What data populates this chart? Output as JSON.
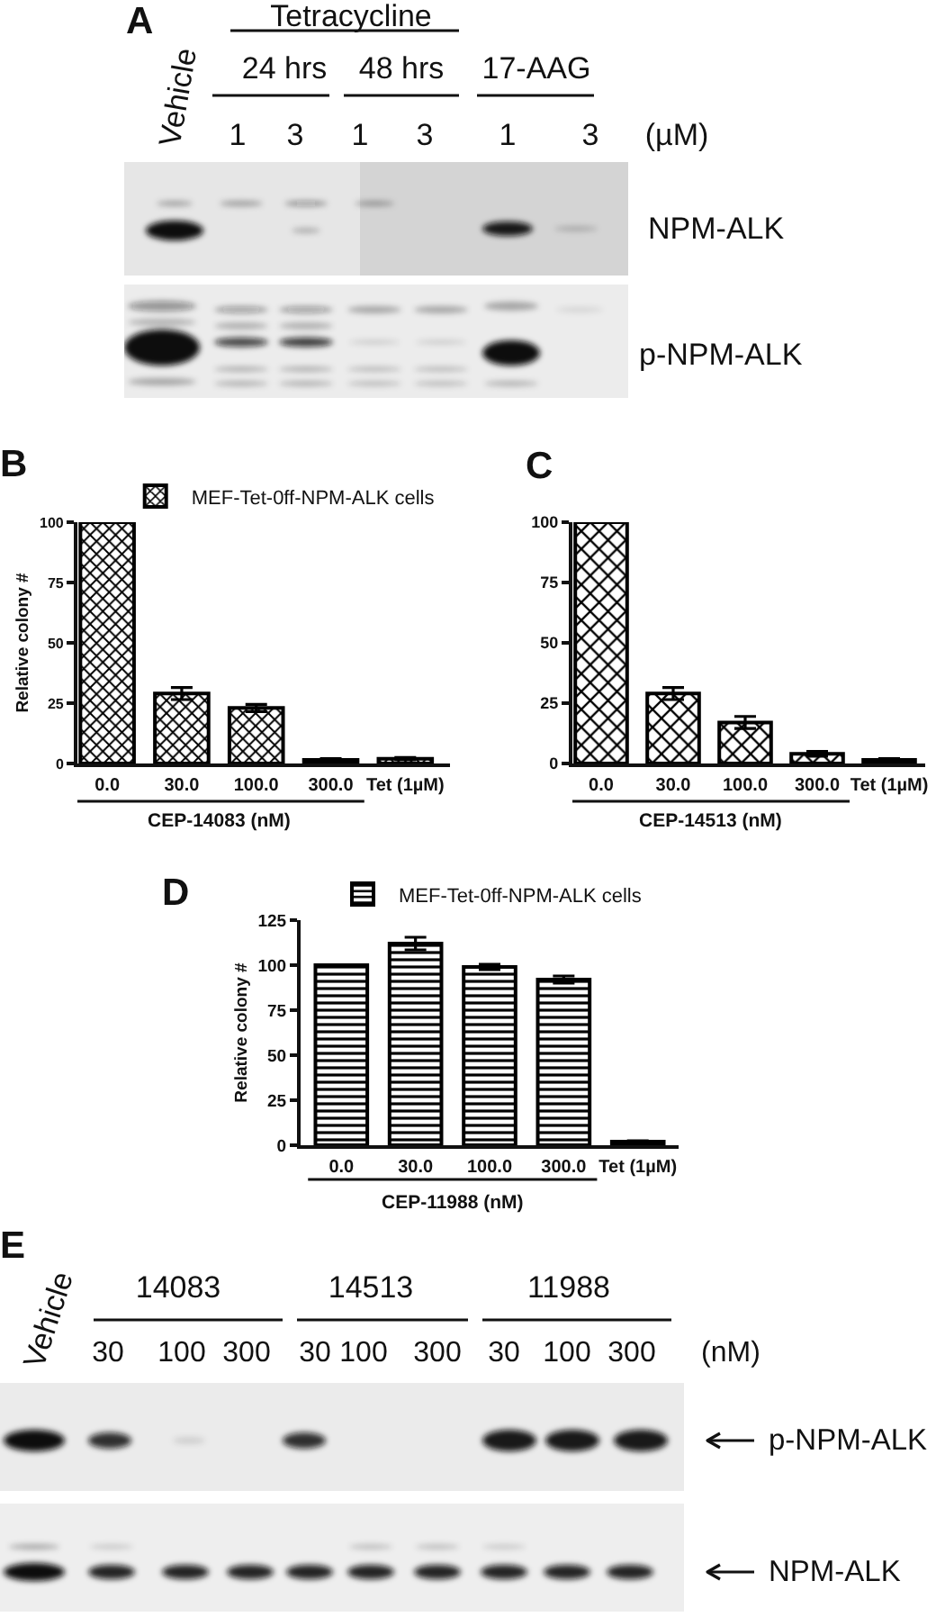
{
  "chart_data": [
    {
      "type": "other",
      "title": "A",
      "annotations": [
        "Tetracycline",
        "Vehicle",
        "24 hrs",
        "48 hrs",
        "17-AAG",
        "1",
        "3",
        "1",
        "3",
        "1",
        "3",
        "(µM)",
        "NPM-ALK",
        "p-NPM-ALK"
      ]
    },
    {
      "type": "bar",
      "title": "B",
      "ylabel": "Relative colony #",
      "xlabel": "CEP-14083 (nM)",
      "categories": [
        "0.0",
        "30.0",
        "100.0",
        "300.0",
        "Tet (1µM)"
      ],
      "series": [
        {
          "name": "MEF-Tet-0ff-NPM-ALK cells",
          "color": "#000000",
          "values": [
            100,
            29,
            23,
            1.5,
            2
          ],
          "errors": [
            null,
            2.5,
            1.5,
            0.5,
            0.5
          ]
        }
      ],
      "ylim": [
        0,
        100
      ],
      "yticks": [
        0,
        25,
        50,
        75,
        100
      ],
      "legend": "top"
    },
    {
      "type": "bar",
      "title": "C",
      "xlabel": "CEP-14513 (nM)",
      "categories": [
        "0.0",
        "30.0",
        "100.0",
        "300.0",
        "Tet (1µM)"
      ],
      "series": [
        {
          "color": "#000000",
          "values": [
            100,
            29,
            17,
            4,
            1.5
          ],
          "errors": [
            null,
            2.5,
            2.5,
            1,
            0.5
          ]
        }
      ],
      "ylim": [
        0,
        100
      ],
      "yticks": [
        0,
        25,
        50,
        75,
        100
      ]
    },
    {
      "type": "bar",
      "title": "D",
      "ylabel": "Relative colony #",
      "xlabel": "CEP-11988 (nM)",
      "categories": [
        "0.0",
        "30.0",
        "100.0",
        "300.0",
        "Tet (1µM)"
      ],
      "series": [
        {
          "name": "MEF-Tet-0ff-NPM-ALK cells",
          "color": "#000000",
          "values": [
            100,
            112,
            99,
            92,
            2
          ],
          "errors": [
            null,
            3.5,
            1.5,
            2,
            0.5
          ]
        }
      ],
      "ylim": [
        0,
        125
      ],
      "yticks": [
        0,
        25,
        50,
        75,
        100,
        125
      ],
      "legend": "top"
    },
    {
      "type": "other",
      "title": "E",
      "annotations": [
        "Vehicle",
        "14083",
        "14513",
        "11988",
        "30",
        "100",
        "300",
        "30",
        "100",
        "300",
        "30",
        "100",
        "300",
        "(nM)",
        "p-NPM-ALK",
        "NPM-ALK"
      ]
    }
  ]
}
